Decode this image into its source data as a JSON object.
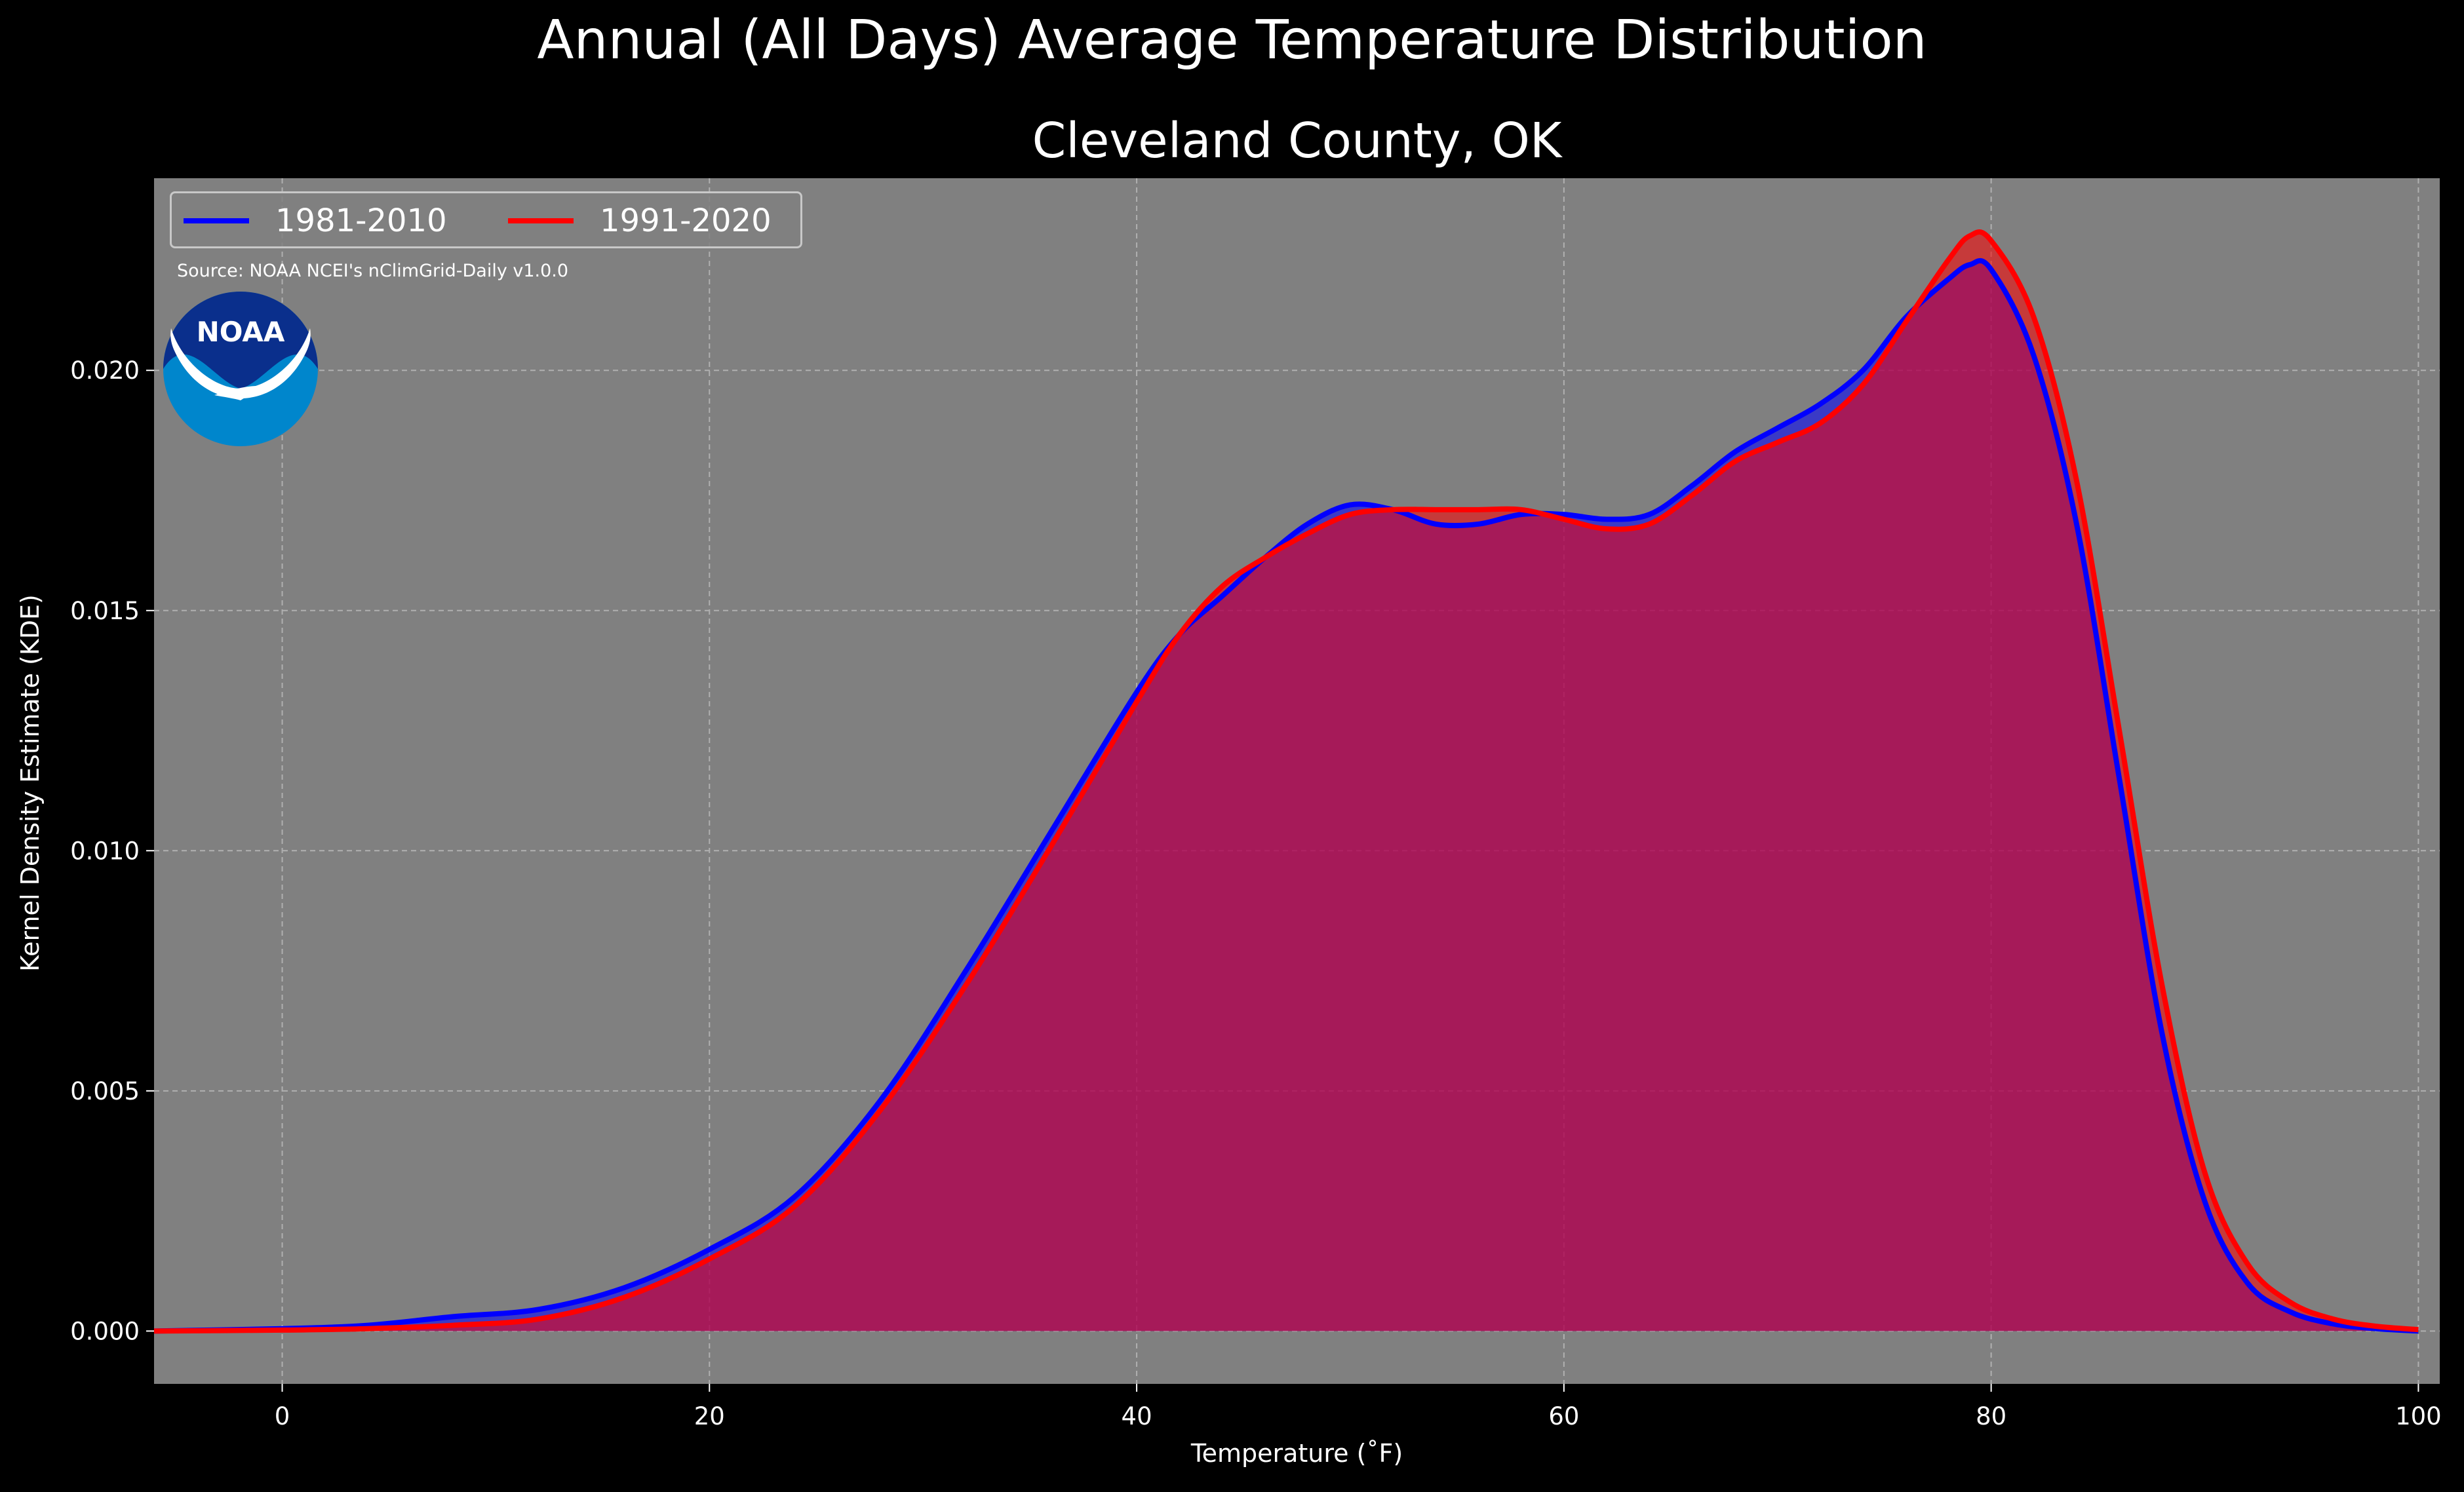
{
  "suptitle": "Annual (All Days) Average Temperature Distribution",
  "colors": {
    "figure_bg": "#000000",
    "plot_bg": "#808080",
    "series_1981_2010": "#0000ff",
    "series_1991_2020": "#ff0000",
    "fill_overlap": "#9c1d5c",
    "noaa_dark": "#0a2f8c",
    "noaa_light": "#0086cc"
  },
  "logo": {
    "icon": "noaa-logo",
    "text": "NOAA"
  },
  "chart_data": {
    "type": "area",
    "title": "Cleveland County, OK",
    "xlabel": "Temperature ($^\\circ$F)",
    "xlabel_display": "Temperature (˚F)",
    "ylabel": "Kernel Density Estimate (KDE)",
    "xlim": [
      -6,
      101
    ],
    "ylim": [
      -0.0011,
      0.024
    ],
    "xticks": [
      0,
      20,
      40,
      60,
      80,
      100
    ],
    "yticks": [
      0.0,
      0.005,
      0.01,
      0.015,
      0.02
    ],
    "ytick_labels": [
      "0.000",
      "0.005",
      "0.010",
      "0.015",
      "0.020"
    ],
    "grid": true,
    "legend_placement": "upper-left",
    "annotation": "Source: NOAA NCEI's nClimGrid-Daily v1.0.0",
    "series": [
      {
        "name": "1981-2010",
        "color": "#0000ff",
        "x": [
          -6,
          0,
          4,
          8,
          12,
          16,
          20,
          24,
          28,
          32,
          36,
          40,
          42,
          44,
          46,
          48,
          50,
          52,
          54,
          56,
          58,
          60,
          62,
          64,
          66,
          68,
          70,
          72,
          74,
          76,
          78,
          79,
          80,
          82,
          84,
          86,
          88,
          90,
          92,
          94,
          96,
          98,
          100
        ],
        "y": [
          0.0,
          5e-05,
          0.00012,
          0.0003,
          0.00045,
          0.0009,
          0.0017,
          0.0028,
          0.0048,
          0.0075,
          0.0104,
          0.0133,
          0.0145,
          0.0153,
          0.0161,
          0.0168,
          0.0172,
          0.0171,
          0.0168,
          0.0168,
          0.017,
          0.017,
          0.0169,
          0.017,
          0.0176,
          0.0183,
          0.0188,
          0.0193,
          0.02,
          0.0211,
          0.0219,
          0.0222,
          0.0221,
          0.0203,
          0.0168,
          0.0115,
          0.0062,
          0.0027,
          0.001,
          0.0004,
          0.00015,
          5e-05,
          0.0
        ]
      },
      {
        "name": "1991-2020",
        "color": "#ff0000",
        "x": [
          -6,
          0,
          4,
          8,
          12,
          16,
          20,
          24,
          28,
          32,
          36,
          40,
          42,
          44,
          46,
          48,
          50,
          52,
          54,
          56,
          58,
          60,
          62,
          64,
          66,
          68,
          70,
          72,
          74,
          76,
          78,
          79,
          80,
          82,
          84,
          86,
          88,
          90,
          92,
          94,
          96,
          98,
          100
        ],
        "y": [
          0.0,
          2e-05,
          5e-05,
          0.00012,
          0.00025,
          0.0007,
          0.0015,
          0.0026,
          0.0046,
          0.0072,
          0.0101,
          0.0131,
          0.0145,
          0.0155,
          0.0161,
          0.0166,
          0.017,
          0.0171,
          0.0171,
          0.0171,
          0.0171,
          0.0169,
          0.0167,
          0.0168,
          0.0174,
          0.0181,
          0.0185,
          0.0189,
          0.0197,
          0.021,
          0.0223,
          0.0228,
          0.0227,
          0.0211,
          0.0177,
          0.0125,
          0.0072,
          0.0033,
          0.0014,
          0.0006,
          0.00025,
          0.0001,
          3e-05
        ]
      }
    ]
  }
}
